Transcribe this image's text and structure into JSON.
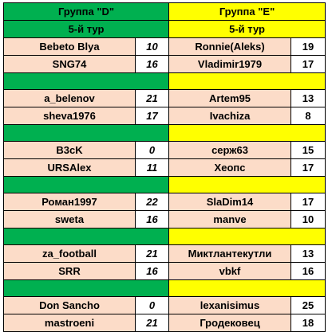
{
  "group_d": {
    "title": "Группа \"D\"",
    "round": "5-й тур"
  },
  "group_e": {
    "title": "Группа \"E\"",
    "round": "5-й тур"
  },
  "colors": {
    "green": "#00b050",
    "yellow": "#ffff00",
    "peach": "#fcdcc8"
  },
  "matches": [
    {
      "rows": [
        {
          "d_name": "Bebeto Blya",
          "d_score": "10",
          "e_name": "Ronnie(Aleks)",
          "e_score": "19"
        },
        {
          "d_name": "SNG74",
          "d_score": "16",
          "e_name": "Vladimir1979",
          "e_score": "17"
        }
      ]
    },
    {
      "rows": [
        {
          "d_name": "a_belenov",
          "d_score": "21",
          "e_name": "Artem95",
          "e_score": "13"
        },
        {
          "d_name": "sheva1976",
          "d_score": "17",
          "e_name": "Ivachiza",
          "e_score": "8"
        }
      ]
    },
    {
      "rows": [
        {
          "d_name": "B3cK",
          "d_score": "0",
          "e_name": "серж63",
          "e_score": "15"
        },
        {
          "d_name": "URSAlex",
          "d_score": "11",
          "e_name": "Хеопс",
          "e_score": "17"
        }
      ]
    },
    {
      "rows": [
        {
          "d_name": "Роман1997",
          "d_score": "22",
          "e_name": "SlaDim14",
          "e_score": "17"
        },
        {
          "d_name": "sweta",
          "d_score": "16",
          "e_name": "manve",
          "e_score": "10"
        }
      ]
    },
    {
      "rows": [
        {
          "d_name": "za_football",
          "d_score": "21",
          "e_name": "Миктлантекутли",
          "e_score": "13"
        },
        {
          "d_name": "SRR",
          "d_score": "16",
          "e_name": "vbkf",
          "e_score": "16"
        }
      ]
    },
    {
      "rows": [
        {
          "d_name": "Don Sancho",
          "d_score": "0",
          "e_name": "lexanisimus",
          "e_score": "25"
        },
        {
          "d_name": "mastroeni",
          "d_score": "21",
          "e_name": "Гродековец",
          "e_score": "18"
        }
      ]
    }
  ]
}
